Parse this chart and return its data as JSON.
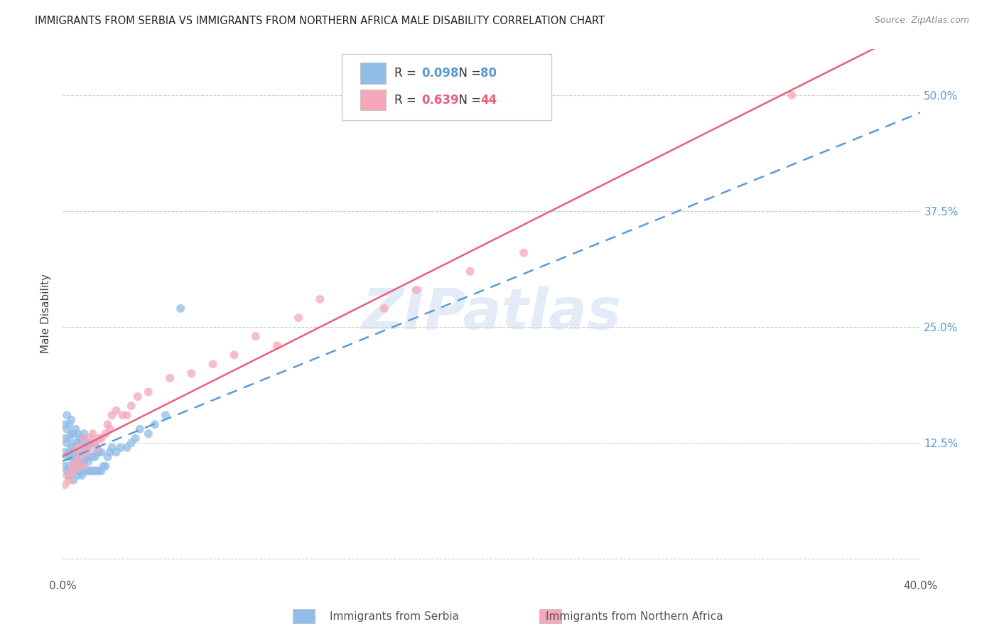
{
  "title": "IMMIGRANTS FROM SERBIA VS IMMIGRANTS FROM NORTHERN AFRICA MALE DISABILITY CORRELATION CHART",
  "source": "Source: ZipAtlas.com",
  "ylabel": "Male Disability",
  "xlim": [
    0.0,
    0.4
  ],
  "ylim": [
    -0.02,
    0.55
  ],
  "xtick_pos": [
    0.0,
    0.05,
    0.1,
    0.15,
    0.2,
    0.25,
    0.3,
    0.35,
    0.4
  ],
  "xticklabels": [
    "0.0%",
    "",
    "",
    "",
    "",
    "",
    "",
    "",
    "40.0%"
  ],
  "ytick_pos": [
    0.0,
    0.125,
    0.25,
    0.375,
    0.5
  ],
  "yticklabels_right": [
    "",
    "12.5%",
    "25.0%",
    "37.5%",
    "50.0%"
  ],
  "serbia_R": 0.098,
  "serbia_N": 80,
  "north_africa_R": 0.639,
  "north_africa_N": 44,
  "serbia_color": "#92BDE8",
  "north_africa_color": "#F4A8BA",
  "serbia_line_color": "#5A9BD5",
  "north_africa_line_color": "#E8607A",
  "watermark": "ZIPatlas",
  "serbia_scatter_x": [
    0.001,
    0.001,
    0.001,
    0.001,
    0.002,
    0.002,
    0.002,
    0.002,
    0.002,
    0.003,
    0.003,
    0.003,
    0.003,
    0.003,
    0.004,
    0.004,
    0.004,
    0.004,
    0.004,
    0.005,
    0.005,
    0.005,
    0.005,
    0.005,
    0.006,
    0.006,
    0.006,
    0.006,
    0.007,
    0.007,
    0.007,
    0.007,
    0.007,
    0.008,
    0.008,
    0.008,
    0.008,
    0.009,
    0.009,
    0.009,
    0.009,
    0.01,
    0.01,
    0.01,
    0.01,
    0.011,
    0.011,
    0.011,
    0.012,
    0.012,
    0.012,
    0.013,
    0.013,
    0.013,
    0.014,
    0.014,
    0.015,
    0.015,
    0.015,
    0.016,
    0.016,
    0.017,
    0.017,
    0.018,
    0.018,
    0.019,
    0.02,
    0.021,
    0.022,
    0.023,
    0.025,
    0.027,
    0.03,
    0.032,
    0.034,
    0.036,
    0.04,
    0.043,
    0.048,
    0.055
  ],
  "serbia_scatter_y": [
    0.1,
    0.115,
    0.13,
    0.145,
    0.095,
    0.11,
    0.125,
    0.14,
    0.155,
    0.09,
    0.1,
    0.115,
    0.13,
    0.145,
    0.095,
    0.11,
    0.12,
    0.135,
    0.15,
    0.085,
    0.095,
    0.105,
    0.12,
    0.135,
    0.1,
    0.11,
    0.125,
    0.14,
    0.09,
    0.1,
    0.115,
    0.125,
    0.135,
    0.095,
    0.105,
    0.115,
    0.13,
    0.09,
    0.1,
    0.115,
    0.13,
    0.095,
    0.105,
    0.12,
    0.135,
    0.095,
    0.11,
    0.125,
    0.095,
    0.105,
    0.12,
    0.095,
    0.11,
    0.125,
    0.095,
    0.11,
    0.095,
    0.11,
    0.125,
    0.095,
    0.115,
    0.095,
    0.115,
    0.095,
    0.115,
    0.1,
    0.1,
    0.11,
    0.115,
    0.12,
    0.115,
    0.12,
    0.12,
    0.125,
    0.13,
    0.14,
    0.135,
    0.145,
    0.155,
    0.27
  ],
  "nafrica_scatter_x": [
    0.001,
    0.002,
    0.003,
    0.004,
    0.005,
    0.005,
    0.006,
    0.007,
    0.007,
    0.008,
    0.009,
    0.01,
    0.01,
    0.011,
    0.012,
    0.013,
    0.014,
    0.015,
    0.016,
    0.017,
    0.018,
    0.02,
    0.021,
    0.022,
    0.023,
    0.025,
    0.028,
    0.03,
    0.032,
    0.035,
    0.04,
    0.05,
    0.06,
    0.07,
    0.08,
    0.09,
    0.1,
    0.11,
    0.12,
    0.15,
    0.165,
    0.19,
    0.215,
    0.34
  ],
  "nafrica_scatter_y": [
    0.08,
    0.09,
    0.085,
    0.095,
    0.1,
    0.095,
    0.105,
    0.1,
    0.12,
    0.11,
    0.115,
    0.1,
    0.13,
    0.12,
    0.115,
    0.13,
    0.135,
    0.125,
    0.12,
    0.13,
    0.13,
    0.135,
    0.145,
    0.14,
    0.155,
    0.16,
    0.155,
    0.155,
    0.165,
    0.175,
    0.18,
    0.195,
    0.2,
    0.21,
    0.22,
    0.24,
    0.23,
    0.26,
    0.28,
    0.27,
    0.29,
    0.31,
    0.33,
    0.5
  ]
}
